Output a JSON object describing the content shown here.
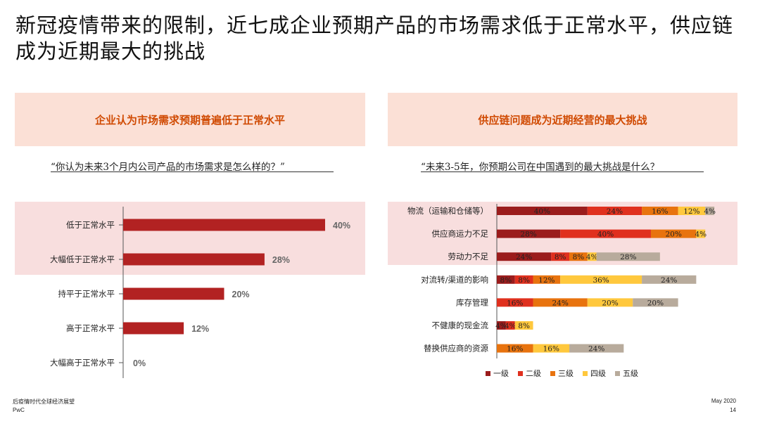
{
  "title": "新冠疫情带来的限制，近七成企业预期产品的市场需求低于正常水平，供应链成为近期最大的挑战",
  "left_panel": {
    "heading": "企业认为市场需求预期普遍低于正常水平",
    "question": "“你认为未来3个月内公司产品的市场需求是怎么样的？”"
  },
  "right_panel": {
    "heading": "供应链问题成为近期经营的最大挑战",
    "question": "“未来3-5年，你预期公司在中国遇到的最大挑战是什么？"
  },
  "footer": {
    "report_title": "后疫情时代全球经济展望",
    "brand": "PwC",
    "date": "May 2020",
    "page": "14"
  },
  "chart_data": [
    {
      "type": "bar",
      "orientation": "horizontal",
      "categories": [
        "低于正常水平",
        "大幅低于正常水平",
        "持平于正常水平",
        "高于正常水平",
        "大幅高于正常水平"
      ],
      "values": [
        40,
        28,
        20,
        12,
        0
      ],
      "value_labels": [
        "40%",
        "28%",
        "20%",
        "12%",
        "0%"
      ],
      "xlim": [
        0,
        50
      ],
      "highlighted_rows": [
        0,
        1
      ],
      "color": "#b22222"
    },
    {
      "type": "bar",
      "orientation": "horizontal",
      "stacked": true,
      "categories": [
        "物流（运输和仓储等）",
        "供应商运力不足",
        "劳动力不足",
        "对流转/渠道的影响",
        "库存管理",
        "不健康的现金流",
        "替换供应商的资源"
      ],
      "series": [
        {
          "name": "一级",
          "color": "#9b1c1c",
          "values": [
            40,
            28,
            24,
            8,
            0,
            4,
            0
          ]
        },
        {
          "name": "二级",
          "color": "#e0301e",
          "values": [
            24,
            40,
            8,
            8,
            16,
            4,
            0
          ]
        },
        {
          "name": "三级",
          "color": "#e8730e",
          "values": [
            16,
            20,
            8,
            12,
            24,
            0,
            16
          ]
        },
        {
          "name": "四级",
          "color": "#ffc83d",
          "values": [
            12,
            4,
            4,
            36,
            20,
            8,
            16
          ]
        },
        {
          "name": "五级",
          "color": "#b8ab9c",
          "values": [
            4,
            0,
            28,
            24,
            20,
            0,
            24
          ]
        }
      ],
      "value_labels": [
        [
          "40%",
          "24%",
          "16%",
          "12%",
          "4%"
        ],
        [
          "28%",
          "40%",
          "20%",
          "4%",
          ""
        ],
        [
          "24%",
          "8%",
          "8%",
          "4%",
          "28%"
        ],
        [
          "8%",
          "8%",
          "12%",
          "36%",
          "24%"
        ],
        [
          "",
          "16%",
          "24%",
          "20%",
          "20%"
        ],
        [
          "4%",
          "4%",
          "",
          "8%",
          ""
        ],
        [
          "",
          "",
          "16%",
          "16%",
          "24%"
        ]
      ],
      "highlighted_rows": [
        0,
        1,
        2
      ],
      "legend_position": "bottom"
    }
  ]
}
